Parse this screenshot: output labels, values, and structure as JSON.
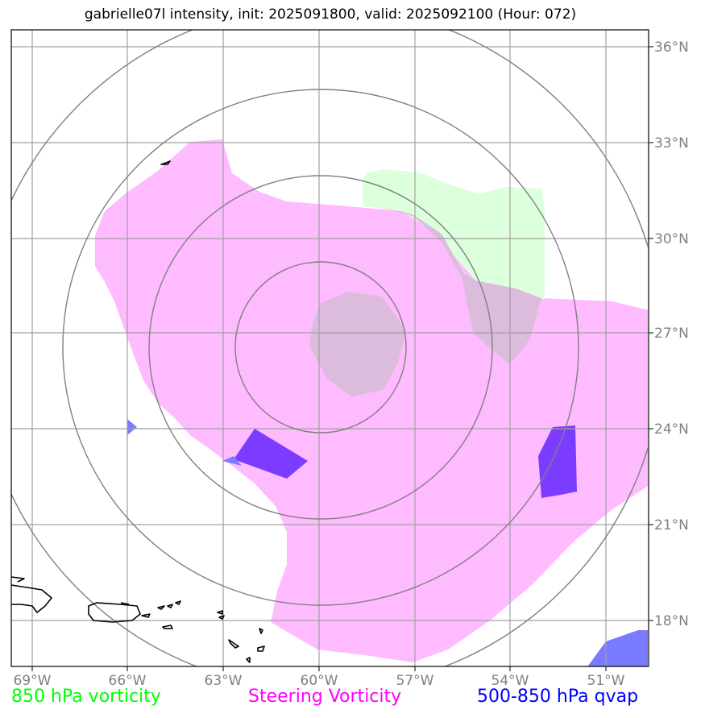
{
  "title": "gabrielle07l intensity, init: 2025091800, valid: 2025092100 (Hour: 072)",
  "axes": {
    "lon_ticks": [
      "69°W",
      "66°W",
      "63°W",
      "60°W",
      "57°W",
      "54°W",
      "51°W"
    ],
    "lat_ticks": [
      "36°N",
      "33°N",
      "30°N",
      "27°N",
      "24°N",
      "21°N",
      "18°N"
    ]
  },
  "legend": [
    {
      "label": "850 hPa vorticity",
      "color": "#00ff00"
    },
    {
      "label": "Steering Vorticity",
      "color": "#ff00ff"
    },
    {
      "label": "500-850 hPa qvap",
      "color": "#0000ff"
    }
  ],
  "colors": {
    "steering_fill": "#ffbbff",
    "vort850_fill": "#dcffdc",
    "overlap_fill": "#dcbcdc",
    "qvap_fill": "#7b3cff",
    "qvap_light": "#7b7bff",
    "grid": "#a0a0a0",
    "rings": "#808080",
    "coast": "#000000"
  }
}
